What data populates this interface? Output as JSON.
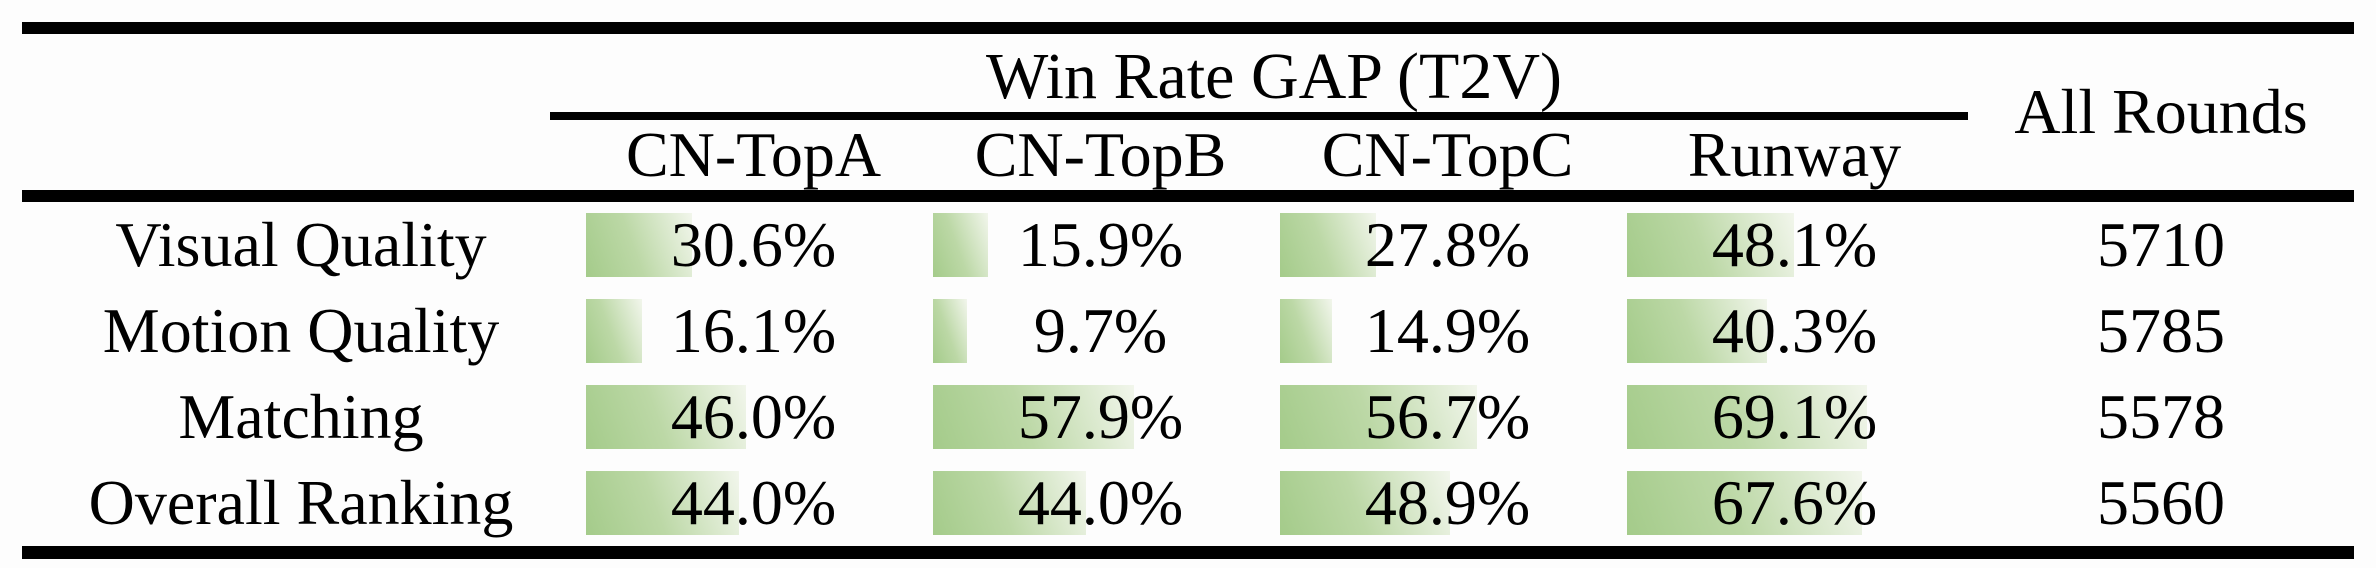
{
  "theme": {
    "background": "#fdfdfd",
    "text_color": "#000000",
    "rule_color": "#000000",
    "bar_gradient_start": "#a4cb8a",
    "bar_gradient_mid": "#bcd8a6",
    "bar_gradient_end": "#f2f6ec"
  },
  "table": {
    "group_header": "Win Rate GAP (T2V)",
    "all_rounds_header": "All Rounds",
    "model_columns": [
      "CN-TopA",
      "CN-TopB",
      "CN-TopC",
      "Runway"
    ],
    "rows": [
      {
        "label": "Visual Quality",
        "values": [
          {
            "display": "30.6%",
            "pct": 30.6
          },
          {
            "display": "15.9%",
            "pct": 15.9
          },
          {
            "display": "27.8%",
            "pct": 27.8
          },
          {
            "display": "48.1%",
            "pct": 48.1
          }
        ],
        "all_rounds": "5710"
      },
      {
        "label": "Motion Quality",
        "values": [
          {
            "display": "16.1%",
            "pct": 16.1
          },
          {
            "display": "9.7%",
            "pct": 9.7
          },
          {
            "display": "14.9%",
            "pct": 14.9
          },
          {
            "display": "40.3%",
            "pct": 40.3
          }
        ],
        "all_rounds": "5785"
      },
      {
        "label": "Matching",
        "values": [
          {
            "display": "46.0%",
            "pct": 46.0
          },
          {
            "display": "57.9%",
            "pct": 57.9
          },
          {
            "display": "56.7%",
            "pct": 56.7
          },
          {
            "display": "69.1%",
            "pct": 69.1
          }
        ],
        "all_rounds": "5578"
      },
      {
        "label": "Overall Ranking",
        "values": [
          {
            "display": "44.0%",
            "pct": 44.0
          },
          {
            "display": "44.0%",
            "pct": 44.0
          },
          {
            "display": "48.9%",
            "pct": 48.9
          },
          {
            "display": "67.6%",
            "pct": 67.6
          }
        ],
        "all_rounds": "5560"
      }
    ]
  },
  "chart_data": {
    "type": "table",
    "title": "Win Rate GAP (T2V)",
    "columns": [
      "CN-TopA",
      "CN-TopB",
      "CN-TopC",
      "Runway",
      "All Rounds"
    ],
    "row_labels": [
      "Visual Quality",
      "Motion Quality",
      "Matching",
      "Overall Ranking"
    ],
    "series": [
      {
        "name": "Visual Quality",
        "win_rate_gap_pct": [
          30.6,
          15.9,
          27.8,
          48.1
        ],
        "all_rounds": 5710
      },
      {
        "name": "Motion Quality",
        "win_rate_gap_pct": [
          16.1,
          9.7,
          14.9,
          40.3
        ],
        "all_rounds": 5785
      },
      {
        "name": "Matching",
        "win_rate_gap_pct": [
          46.0,
          57.9,
          56.7,
          69.1
        ],
        "all_rounds": 5578
      },
      {
        "name": "Overall Ranking",
        "win_rate_gap_pct": [
          44.0,
          44.0,
          48.9,
          67.6
        ],
        "all_rounds": 5560
      }
    ],
    "bar_scale": "data bar width = percentage of cell width",
    "bar_color": "#a4cb8a"
  }
}
